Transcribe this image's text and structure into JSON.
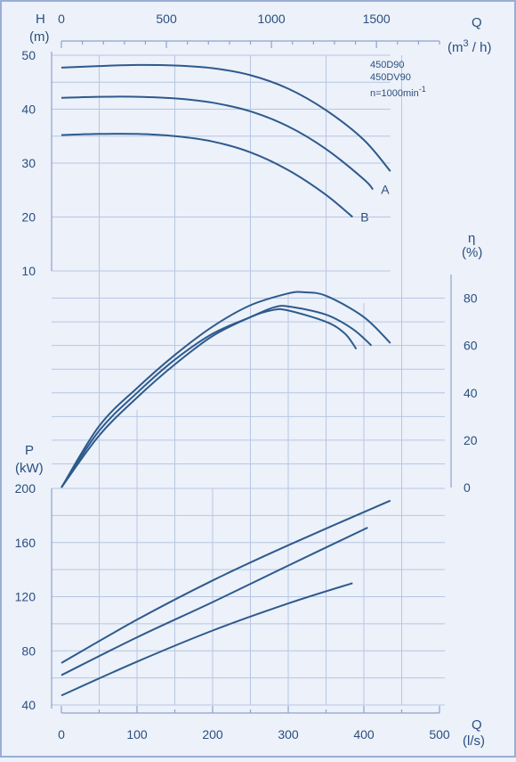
{
  "chart_data": {
    "type": "line",
    "annotation": {
      "models": [
        "450D90",
        "450DV90"
      ],
      "speed_text": "n=1000min",
      "speed_exp": "-1"
    },
    "axes": {
      "q_top": {
        "label": "Q",
        "unit_base": "(m",
        "unit_exp": "3",
        "unit_tail": " / h)",
        "range": [
          0,
          1800
        ],
        "ticks": [
          0,
          500,
          1000,
          1500
        ]
      },
      "q_bottom": {
        "label": "Q",
        "unit": "(l/s)",
        "range": [
          0,
          500
        ],
        "ticks": [
          0,
          100,
          200,
          300,
          400,
          500
        ]
      },
      "head": {
        "label": "H",
        "unit": "(m)",
        "range": [
          10,
          50
        ],
        "ticks": [
          10,
          20,
          30,
          40,
          50
        ]
      },
      "efficiency": {
        "label": "η",
        "unit": "(%)",
        "range": [
          0,
          90
        ],
        "ticks": [
          0,
          20,
          40,
          60,
          80
        ]
      },
      "power": {
        "label": "P",
        "unit": "(kW)",
        "range": [
          40,
          200
        ],
        "ticks": [
          40,
          80,
          120,
          160,
          200
        ]
      }
    },
    "head_series": [
      {
        "name": "",
        "end_label": "",
        "x": [
          0,
          50,
          100,
          150,
          200,
          250,
          300,
          350,
          400,
          435
        ],
        "y": [
          47.7,
          48.0,
          48.2,
          48.1,
          47.6,
          46.3,
          43.8,
          39.8,
          34.3,
          28.5
        ]
      },
      {
        "name": "A",
        "end_label": "A",
        "x": [
          0,
          50,
          100,
          150,
          200,
          250,
          300,
          350,
          400,
          412
        ],
        "y": [
          42.1,
          42.3,
          42.3,
          42.0,
          41.2,
          39.6,
          36.8,
          32.6,
          27.0,
          25.1
        ]
      },
      {
        "name": "B",
        "end_label": "B",
        "x": [
          0,
          50,
          100,
          150,
          200,
          250,
          300,
          350,
          385
        ],
        "y": [
          35.2,
          35.4,
          35.4,
          35.0,
          34.0,
          32.0,
          28.7,
          24.1,
          20.0
        ]
      }
    ],
    "efficiency_series": [
      {
        "name": "",
        "x": [
          0,
          50,
          100,
          150,
          200,
          250,
          300,
          320,
          350,
          400,
          435
        ],
        "y": [
          0,
          26,
          42,
          56,
          68,
          77,
          82,
          82.5,
          81,
          72,
          61
        ]
      },
      {
        "name": "",
        "x": [
          0,
          50,
          100,
          150,
          200,
          250,
          280,
          300,
          350,
          385,
          410
        ],
        "y": [
          0,
          24,
          40,
          54,
          65,
          72,
          76,
          76.5,
          73,
          67,
          60
        ]
      },
      {
        "name": "",
        "x": [
          0,
          50,
          100,
          150,
          200,
          250,
          280,
          300,
          350,
          375,
          390
        ],
        "y": [
          0,
          22,
          38,
          52,
          64,
          72,
          75,
          74.8,
          70,
          65,
          58.5
        ]
      }
    ],
    "power_series": [
      {
        "name": "",
        "x": [
          0,
          100,
          200,
          300,
          435
        ],
        "y": [
          71,
          103,
          132,
          158,
          191
        ]
      },
      {
        "name": "",
        "x": [
          0,
          100,
          200,
          300,
          405
        ],
        "y": [
          62,
          90,
          116,
          143,
          171
        ]
      },
      {
        "name": "",
        "x": [
          0,
          100,
          200,
          300,
          385
        ],
        "y": [
          47,
          72,
          95,
          115,
          130
        ]
      }
    ]
  }
}
